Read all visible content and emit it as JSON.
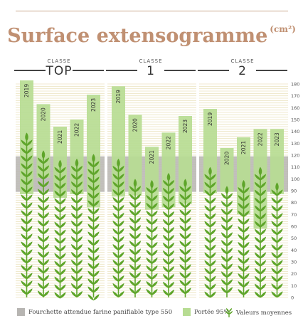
{
  "title_text": "Surface extensogramme",
  "title_unit": "(cm²)",
  "class_label": "CLASSE",
  "colors": {
    "background_lines": "#ece3bf",
    "range_band": "#b7b5b2",
    "bar_light": "#b7dc92",
    "wheat": "#5ea52a",
    "title": "#c09072"
  },
  "legend": {
    "range": "Fourchette attendue farine panifiable type 550",
    "bar": "Portée 95%",
    "mean": "Valeurs moyennes",
    "range_icon": "grey-square-icon",
    "bar_icon": "green-square-icon",
    "mean_icon": "wheat-ear-icon"
  },
  "chart_data": {
    "type": "bar",
    "title": "Surface extensogramme (cm²)",
    "ylim": [
      0,
      180
    ],
    "yticks": [
      0,
      10,
      20,
      30,
      40,
      50,
      60,
      70,
      80,
      90,
      100,
      110,
      120,
      130,
      140,
      150,
      160,
      170,
      180
    ],
    "grid": true,
    "expected_range": [
      89,
      119
    ],
    "groups": [
      {
        "name": "TOP",
        "bars": [
          {
            "year": "2019",
            "low": 87,
            "high": 183,
            "mean": 139
          },
          {
            "year": "2020",
            "low": 101,
            "high": 163,
            "mean": 124
          },
          {
            "year": "2021",
            "low": 84,
            "high": 144,
            "mean": 116
          },
          {
            "year": "2022",
            "low": 87,
            "high": 150,
            "mean": 117
          },
          {
            "year": "2023",
            "low": 76,
            "high": 171,
            "mean": 121
          }
        ]
      },
      {
        "name": "1",
        "bars": [
          {
            "year": "2019",
            "low": 85,
            "high": 178,
            "mean": 117
          },
          {
            "year": "2020",
            "low": 86,
            "high": 154,
            "mean": 100
          },
          {
            "year": "2021",
            "low": 74,
            "high": 127,
            "mean": 99
          },
          {
            "year": "2022",
            "low": 76,
            "high": 139,
            "mean": 105
          },
          {
            "year": "2023",
            "low": 79,
            "high": 153,
            "mean": 100
          }
        ]
      },
      {
        "name": "2",
        "bars": [
          {
            "year": "2019",
            "low": 88,
            "high": 159,
            "mean": 110
          },
          {
            "year": "2020",
            "low": 89,
            "high": 126,
            "mean": 94
          },
          {
            "year": "2021",
            "low": 70,
            "high": 135,
            "mean": 99
          },
          {
            "year": "2022",
            "low": 58,
            "high": 142,
            "mean": 110
          },
          {
            "year": "2023",
            "low": 87,
            "high": 142,
            "mean": 97
          }
        ]
      }
    ]
  }
}
